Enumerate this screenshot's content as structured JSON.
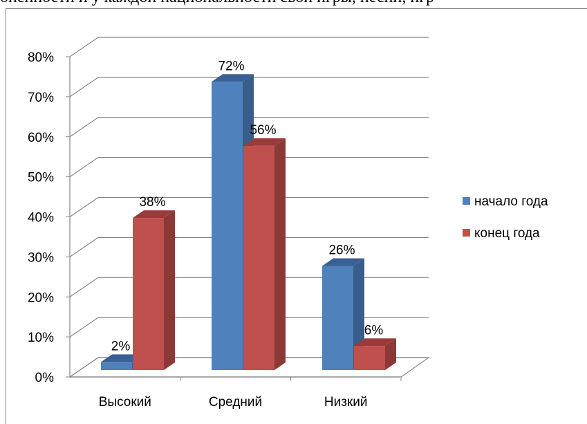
{
  "header_text": "оненности и у каждой национальности свои игры, песни, игр",
  "colors": {
    "blue": "#4f81bd",
    "blue_side": "#385d8a",
    "blue_top": "#3a5f93",
    "red": "#c0504d",
    "red_side": "#8c3836",
    "red_top": "#9b3b39",
    "grid": "#868686"
  },
  "chart_data": {
    "type": "bar",
    "categories": [
      "Высокий",
      "Средний",
      "Низкий"
    ],
    "series": [
      {
        "name": "начало года",
        "values": [
          2,
          72,
          26
        ],
        "labels": [
          "2%",
          "72%",
          "26%"
        ]
      },
      {
        "name": "конец года",
        "values": [
          38,
          56,
          6
        ],
        "labels": [
          "38%",
          "56%",
          "6%"
        ]
      }
    ],
    "y_ticks": [
      "0%",
      "10%",
      "20%",
      "30%",
      "40%",
      "50%",
      "60%",
      "70%",
      "80%"
    ],
    "ylim": [
      0,
      80
    ],
    "legend_position": "right",
    "grid": true,
    "style": "3d clustered column"
  }
}
